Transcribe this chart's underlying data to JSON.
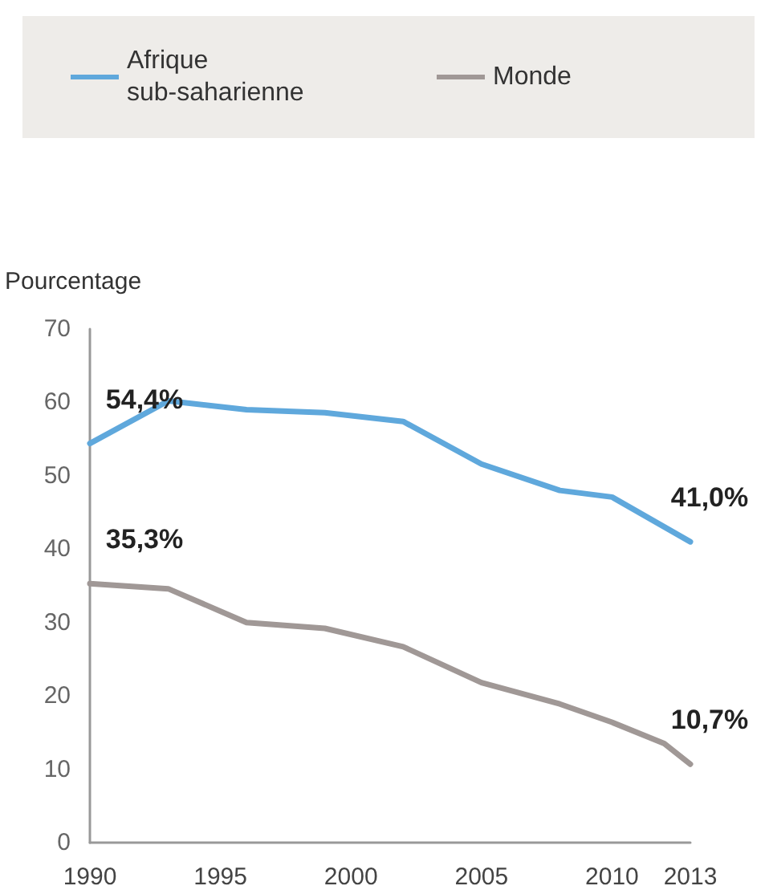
{
  "chart_data": {
    "type": "line",
    "ylabel": "Pourcentage",
    "series": [
      {
        "name": "Afrique sub-saharienne",
        "color": "#5fa8dc",
        "x": [
          1990,
          1993,
          1996,
          1999,
          2002,
          2005,
          2008,
          2010,
          2013
        ],
        "values": [
          54.4,
          60.2,
          59.0,
          58.6,
          57.4,
          51.6,
          48.0,
          47.1,
          41.0
        ],
        "value_labels": [
          "54,4%",
          null,
          null,
          null,
          null,
          null,
          null,
          null,
          "41,0%"
        ]
      },
      {
        "name": "Monde",
        "color": "#a09896",
        "x": [
          1990,
          1993,
          1996,
          1999,
          2002,
          2005,
          2008,
          2010,
          2012,
          2013
        ],
        "values": [
          35.3,
          34.6,
          30.0,
          29.2,
          26.7,
          21.8,
          18.9,
          16.4,
          13.5,
          10.7
        ],
        "value_labels": [
          "35,3%",
          null,
          null,
          null,
          null,
          null,
          null,
          null,
          null,
          "10,7%"
        ]
      }
    ],
    "xlim": [
      1990,
      2013
    ],
    "xticks": [
      1990,
      1995,
      2000,
      2005,
      2010,
      2013
    ],
    "ylim": [
      0,
      70
    ],
    "yticks": [
      0,
      10,
      20,
      30,
      40,
      50,
      60,
      70
    ],
    "grid": false,
    "legend": "top left",
    "marker": "none",
    "line_style": "solid"
  }
}
